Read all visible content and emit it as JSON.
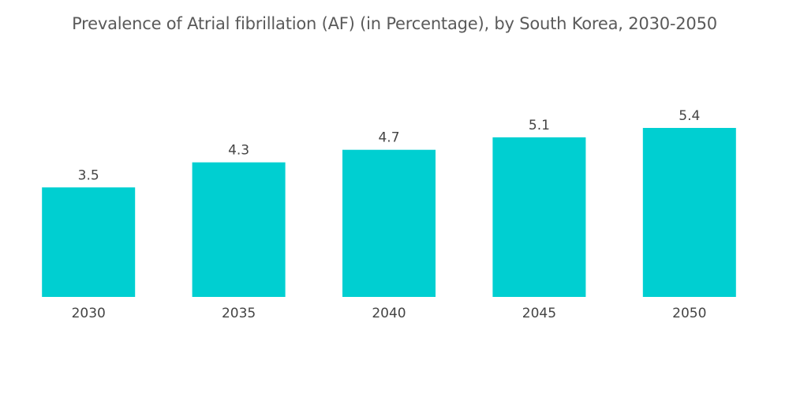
{
  "chart_data": {
    "type": "bar",
    "title": "Prevalence of Atrial fibrillation (AF) (in Percentage), by South Korea, 2030-2050",
    "categories": [
      "2030",
      "2035",
      "2040",
      "2045",
      "2050"
    ],
    "values": [
      3.5,
      4.3,
      4.7,
      5.1,
      5.4
    ],
    "value_labels": [
      "3.5",
      "4.3",
      "4.7",
      "5.1",
      "5.4"
    ],
    "xlabel": "",
    "ylabel": "",
    "ylim": [
      0,
      5.4
    ],
    "grid": false,
    "legend": "none",
    "bar_color": "#00cfd1"
  }
}
